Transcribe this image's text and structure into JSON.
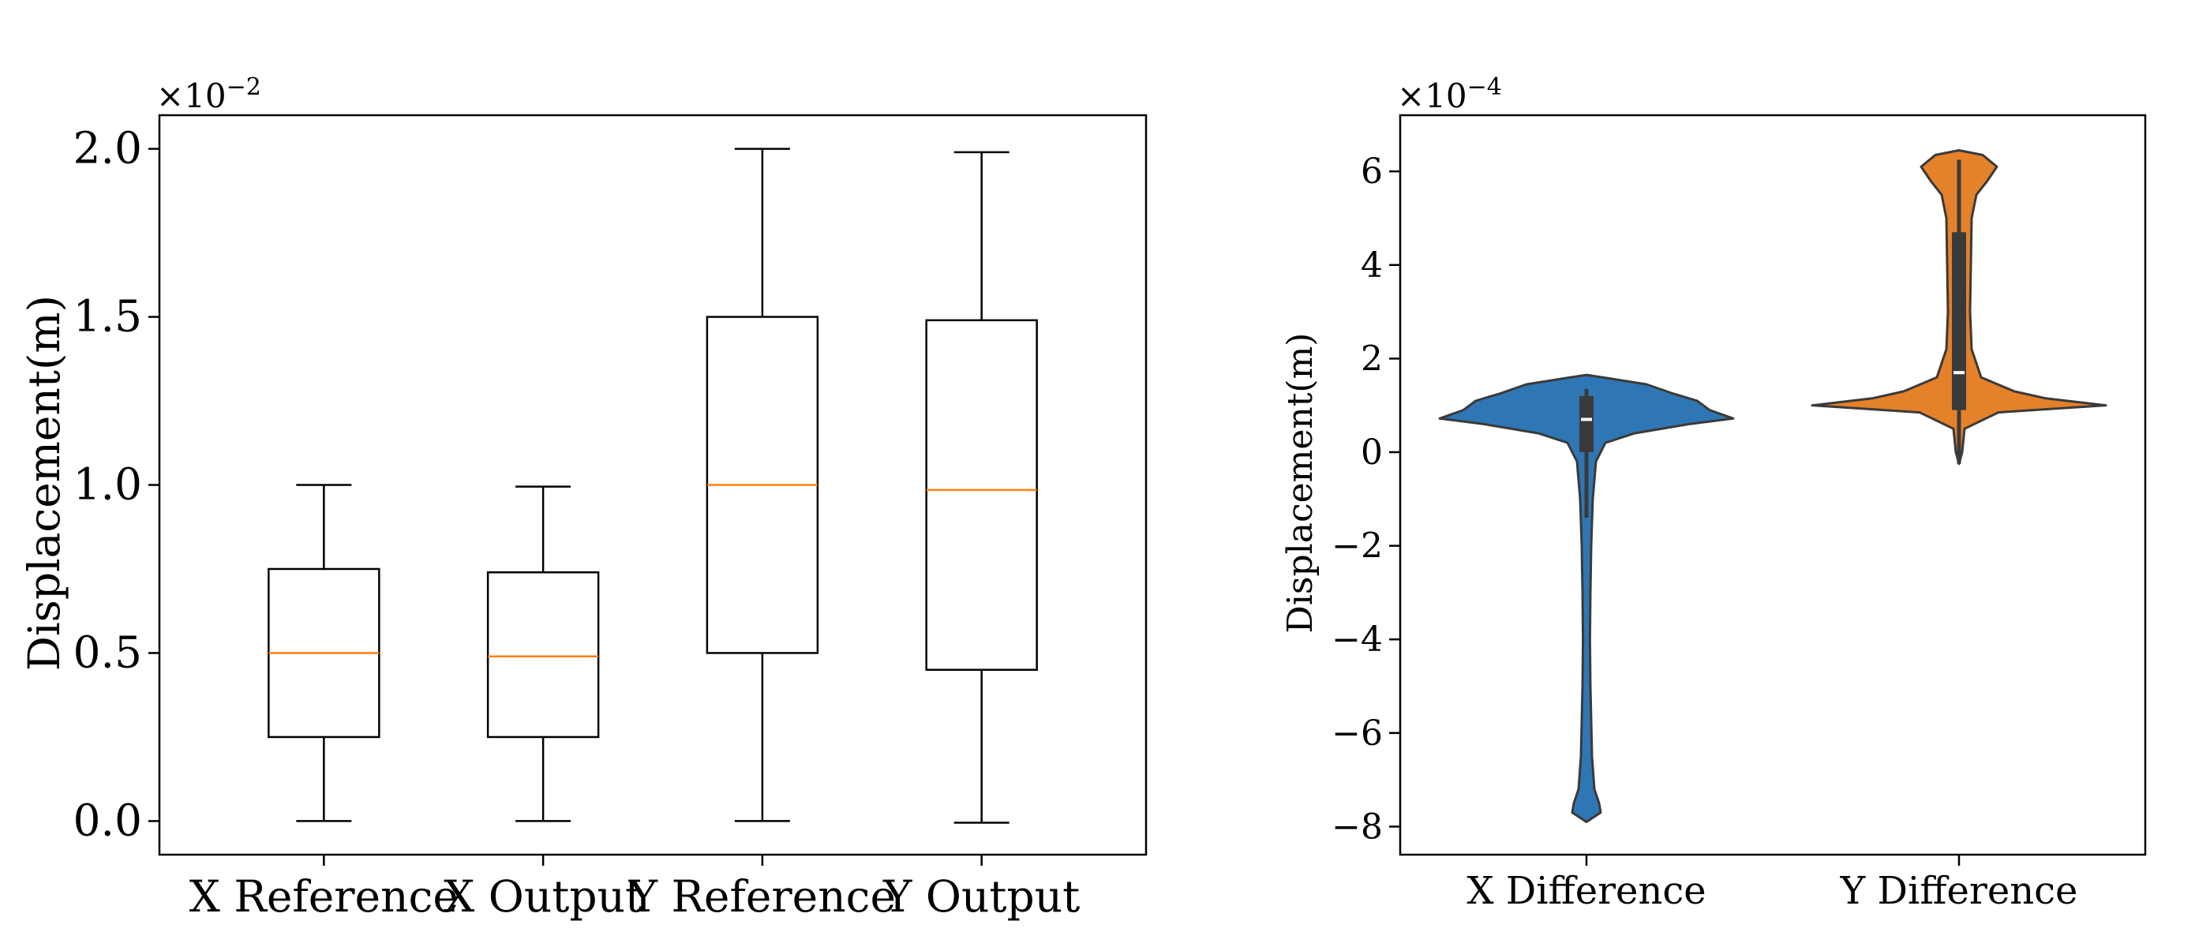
{
  "chart_data": [
    {
      "type": "box",
      "title": "",
      "xlabel": "",
      "ylabel": "Displacement(m)",
      "exponent_label": "×10",
      "exponent_power": "−2",
      "ylim": [
        -0.1,
        2.1
      ],
      "yticks": [
        0.0,
        0.5,
        1.0,
        1.5,
        2.0
      ],
      "ytick_labels": [
        "0.0",
        "0.5",
        "1.0",
        "1.5",
        "2.0"
      ],
      "categories": [
        "X Reference",
        "X Output",
        "Y Reference",
        "Y Output"
      ],
      "boxes": [
        {
          "label": "X Reference",
          "min": 0.0,
          "q1": 0.25,
          "median": 0.5,
          "q3": 0.75,
          "max": 1.0
        },
        {
          "label": "X Output",
          "min": 0.0,
          "q1": 0.25,
          "median": 0.49,
          "q3": 0.74,
          "max": 0.995
        },
        {
          "label": "Y Reference",
          "min": 0.0,
          "q1": 0.5,
          "median": 1.0,
          "q3": 1.5,
          "max": 2.0
        },
        {
          "label": "Y Output",
          "min": -0.005,
          "q1": 0.45,
          "median": 0.985,
          "q3": 1.49,
          "max": 1.99
        }
      ],
      "colors": {
        "box": "#000000",
        "median": "#ff7f0e"
      }
    },
    {
      "type": "violin",
      "title": "",
      "xlabel": "",
      "ylabel": "Displacement(m)",
      "exponent_label": "×10",
      "exponent_power": "−4",
      "ylim": [
        -8.6,
        7.2
      ],
      "yticks": [
        -8,
        -6,
        -4,
        -2,
        0,
        2,
        4,
        6
      ],
      "ytick_labels": [
        "−8",
        "−6",
        "−4",
        "−2",
        "0",
        "2",
        "4",
        "6"
      ],
      "categories": [
        "X Difference",
        "Y Difference"
      ],
      "violins": [
        {
          "label": "X Difference",
          "color": "#2f77b4",
          "min": -7.8,
          "max": 1.6,
          "q1": 0.0,
          "median": 0.7,
          "q3": 1.2,
          "whisker_low": -1.4,
          "whisker_high": 1.35,
          "profile": [
            [
              -7.9,
              0.0
            ],
            [
              -7.7,
              0.09
            ],
            [
              -7.5,
              0.08
            ],
            [
              -7.2,
              0.05
            ],
            [
              -6.5,
              0.035
            ],
            [
              -5.0,
              0.025
            ],
            [
              -4.0,
              0.022
            ],
            [
              -3.0,
              0.025
            ],
            [
              -2.0,
              0.03
            ],
            [
              -1.0,
              0.04
            ],
            [
              -0.2,
              0.06
            ],
            [
              0.2,
              0.12
            ],
            [
              0.4,
              0.3
            ],
            [
              0.6,
              0.65
            ],
            [
              0.72,
              0.93
            ],
            [
              0.9,
              0.78
            ],
            [
              1.1,
              0.7
            ],
            [
              1.25,
              0.55
            ],
            [
              1.45,
              0.38
            ],
            [
              1.6,
              0.1
            ],
            [
              1.65,
              0.0
            ]
          ]
        },
        {
          "label": "Y Difference",
          "color": "#e58129",
          "min": -0.2,
          "max": 6.4,
          "q1": 0.9,
          "median": 1.7,
          "q3": 4.7,
          "whisker_low": -0.25,
          "whisker_high": 6.25,
          "profile": [
            [
              -0.25,
              0.0
            ],
            [
              0.0,
              0.02
            ],
            [
              0.5,
              0.035
            ],
            [
              0.85,
              0.25
            ],
            [
              1.0,
              0.93
            ],
            [
              1.15,
              0.55
            ],
            [
              1.3,
              0.35
            ],
            [
              1.6,
              0.14
            ],
            [
              2.2,
              0.08
            ],
            [
              3.0,
              0.07
            ],
            [
              4.0,
              0.075
            ],
            [
              5.0,
              0.08
            ],
            [
              5.5,
              0.11
            ],
            [
              5.8,
              0.18
            ],
            [
              6.1,
              0.24
            ],
            [
              6.35,
              0.15
            ],
            [
              6.45,
              0.0
            ]
          ]
        }
      ]
    }
  ]
}
